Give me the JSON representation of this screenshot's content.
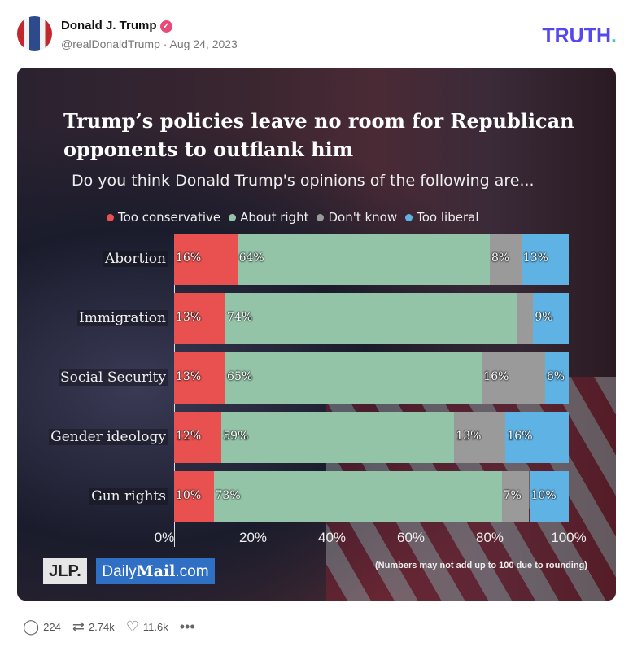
{
  "post": {
    "author": "Donald J. Trump",
    "handle": "@realDonaldTrump",
    "date": "Aug 24, 2023",
    "separator": "·",
    "brand": "TRUTH",
    "brand_dot": "."
  },
  "stats": {
    "replies": "224",
    "reposts": "2.74k",
    "likes": "11.6k"
  },
  "image": {
    "logo_jlp": "JLP.",
    "logo_dailymail": "DailyMail.com",
    "note": "(Numbers may not add up to 100 due to rounding)"
  },
  "chart_data": {
    "type": "bar",
    "orientation": "horizontal",
    "stacked": true,
    "title": "Trump’s policies leave no room for Republican opponents to outflank him",
    "subtitle": "Do you think Donald Trump's opinions of the following are...",
    "categories": [
      "Abortion",
      "Immigration",
      "Social Security",
      "Gender ideology",
      "Gun rights"
    ],
    "series": [
      {
        "name": "Too conservative",
        "color": "#e8514f",
        "values": [
          16,
          13,
          13,
          12,
          10
        ]
      },
      {
        "name": "About right",
        "color": "#93c4a8",
        "values": [
          64,
          74,
          65,
          59,
          73
        ]
      },
      {
        "name": "Don't know",
        "color": "#9a9a9a",
        "values": [
          8,
          4,
          16,
          13,
          7
        ]
      },
      {
        "name": "Too liberal",
        "color": "#5fb3e4",
        "values": [
          13,
          9,
          6,
          16,
          10
        ]
      }
    ],
    "labels_shown": [
      [
        true,
        true,
        true,
        true
      ],
      [
        true,
        true,
        false,
        true
      ],
      [
        true,
        true,
        true,
        true
      ],
      [
        true,
        true,
        true,
        true
      ],
      [
        true,
        true,
        true,
        true
      ]
    ],
    "xticks": [
      "0%",
      "20%",
      "40%",
      "60%",
      "80%",
      "100%"
    ],
    "xlim": [
      0,
      100
    ],
    "legend": "top"
  }
}
